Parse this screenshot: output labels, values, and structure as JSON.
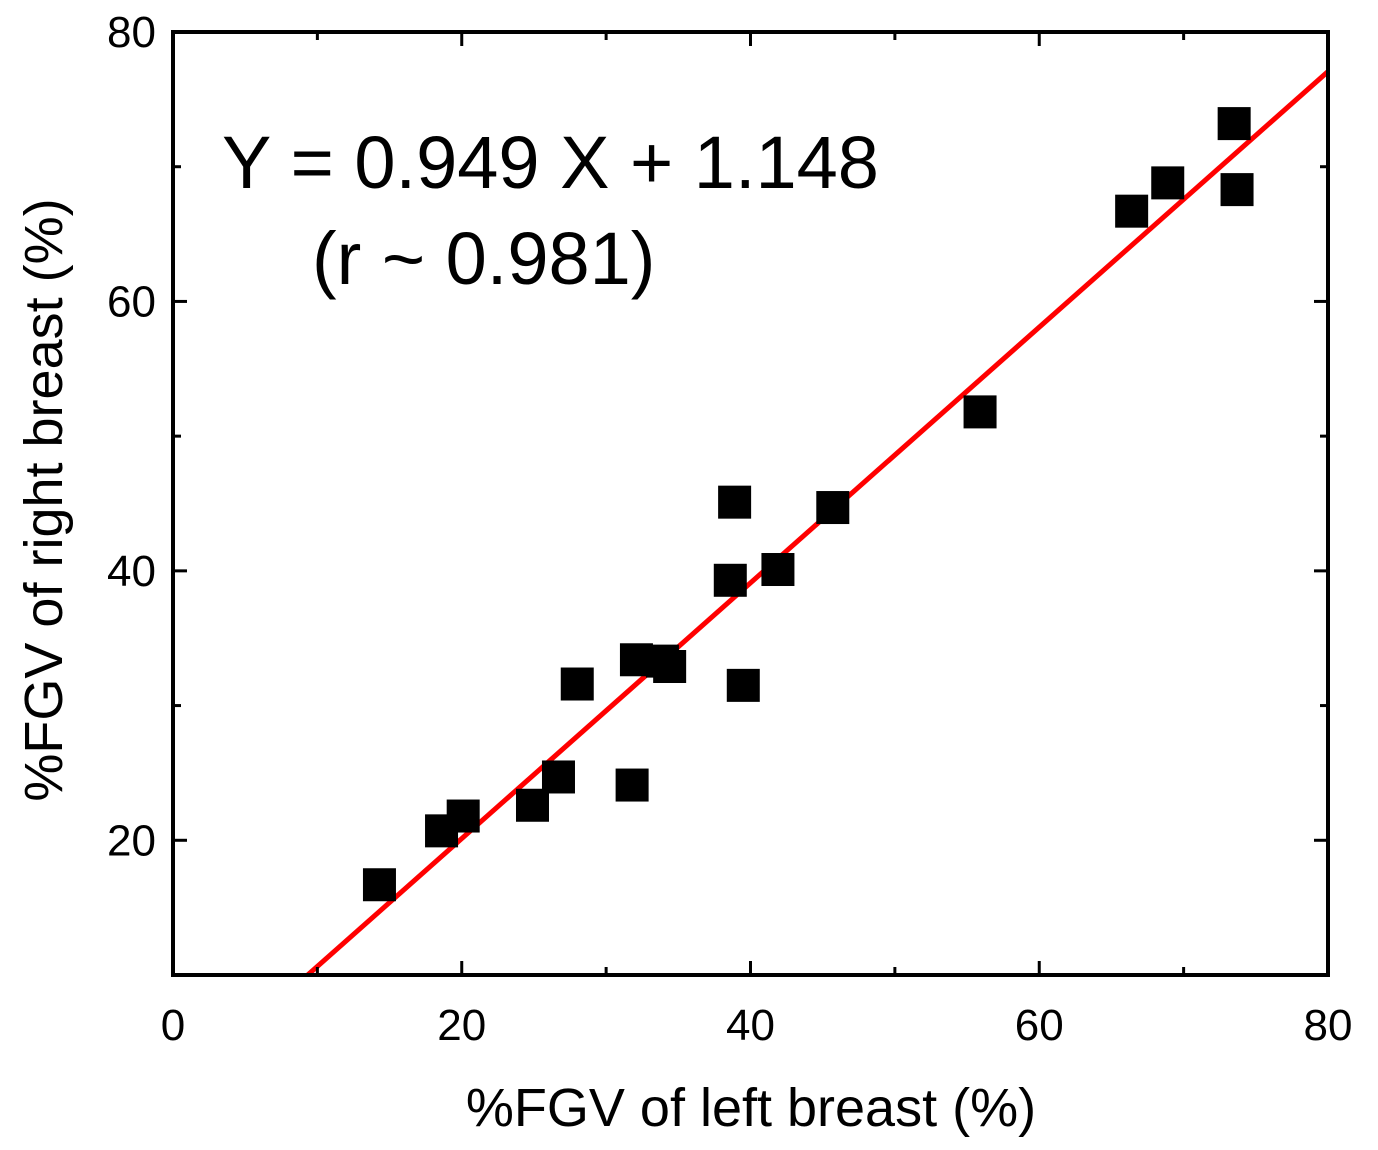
{
  "chart_data": {
    "type": "scatter",
    "xlabel": "%FGV of left breast (%)",
    "ylabel": "%FGV of right breast (%)",
    "xlim": [
      0,
      80
    ],
    "ylim": [
      10,
      80
    ],
    "x_ticks": [
      "0",
      "20",
      "40",
      "60",
      "80"
    ],
    "y_ticks": [
      "20",
      "40",
      "60",
      "80"
    ],
    "x_minor_ticks": [
      10,
      30,
      50,
      70
    ],
    "y_minor_ticks": [
      30,
      50,
      70
    ],
    "grid": false,
    "annotations": [
      "Y = 0.949 X + 1.148",
      "(r ~ 0.981)"
    ],
    "fit_line": {
      "slope": 0.949,
      "intercept": 1.148
    },
    "marker_color": "#000000",
    "line_color": "#ff0000",
    "points": [
      {
        "x": 14.3,
        "y": 16.7
      },
      {
        "x": 18.6,
        "y": 20.7
      },
      {
        "x": 20.1,
        "y": 21.8
      },
      {
        "x": 24.9,
        "y": 22.6
      },
      {
        "x": 26.7,
        "y": 24.7
      },
      {
        "x": 28.0,
        "y": 31.6
      },
      {
        "x": 31.8,
        "y": 24.1
      },
      {
        "x": 32.1,
        "y": 33.4
      },
      {
        "x": 33.9,
        "y": 33.3
      },
      {
        "x": 34.4,
        "y": 32.9
      },
      {
        "x": 38.6,
        "y": 39.3
      },
      {
        "x": 38.9,
        "y": 45.1
      },
      {
        "x": 39.5,
        "y": 31.5
      },
      {
        "x": 41.9,
        "y": 40.1
      },
      {
        "x": 45.7,
        "y": 44.7
      },
      {
        "x": 55.9,
        "y": 51.8
      },
      {
        "x": 66.4,
        "y": 66.7
      },
      {
        "x": 68.9,
        "y": 68.8
      },
      {
        "x": 73.5,
        "y": 73.2
      },
      {
        "x": 73.7,
        "y": 68.3
      }
    ]
  }
}
